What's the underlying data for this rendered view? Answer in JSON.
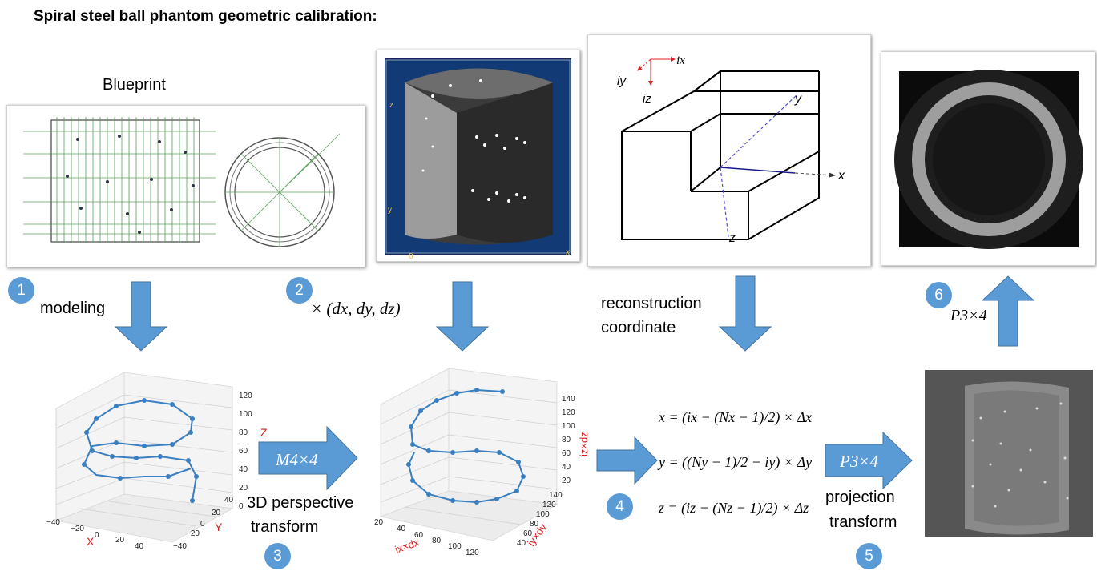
{
  "title": "Spiral steel ball phantom geometric calibration:",
  "blueprint_label": "Blueprint",
  "steps": {
    "s1": "1",
    "s2": "2",
    "s3": "3",
    "s4": "4",
    "s5": "5",
    "s6": "6"
  },
  "labels": {
    "modeling": "modeling",
    "scale": "× (dx, dy, dz)",
    "recon_line1": "reconstruction",
    "recon_line2": "coordinate",
    "transform_matrix": "M4×4",
    "perspective_line1": "3D perspective",
    "perspective_line2": "transform",
    "projection_matrix": "P3×4",
    "projection_line1": "projection",
    "projection_line2": "transform",
    "top_projection_matrix": "P3×4"
  },
  "equations": {
    "x": "x = (ix − (Nx − 1)/2) × Δx",
    "y": "y = ((Ny − 1)/2 − iy) × Δy",
    "z": "z = (iz − (Nz − 1)/2) × Δz"
  },
  "coord_axes": {
    "ix": "ix",
    "iy": "iy",
    "iz": "iz",
    "x": "x",
    "y": "y",
    "z": "z"
  },
  "volume_axes": {
    "z": "z",
    "y": "y",
    "o": "0",
    "x": "x"
  },
  "plot1": {
    "z_label": "Z",
    "x_label": "X",
    "y_label": "Y",
    "z_ticks": [
      "120",
      "100",
      "80",
      "60",
      "40",
      "20",
      "0"
    ],
    "x_ticks": [
      "−40",
      "−20",
      "0",
      "20",
      "40"
    ],
    "y_ticks": [
      "40",
      "20",
      "0",
      "−20",
      "−40"
    ]
  },
  "plot2": {
    "z_label": "iz×dz",
    "x_label": "ix×dx",
    "y_label": "iy×dy",
    "z_ticks": [
      "140",
      "120",
      "100",
      "80",
      "60",
      "40",
      "20"
    ],
    "x_ticks": [
      "20",
      "40",
      "60",
      "80",
      "100",
      "120"
    ],
    "y_ticks": [
      "140",
      "120",
      "100",
      "80",
      "60",
      "40"
    ]
  },
  "colors": {
    "arrow": "#5b9bd5",
    "helix": "#3a7fc0",
    "axis_red": "#e02020"
  }
}
